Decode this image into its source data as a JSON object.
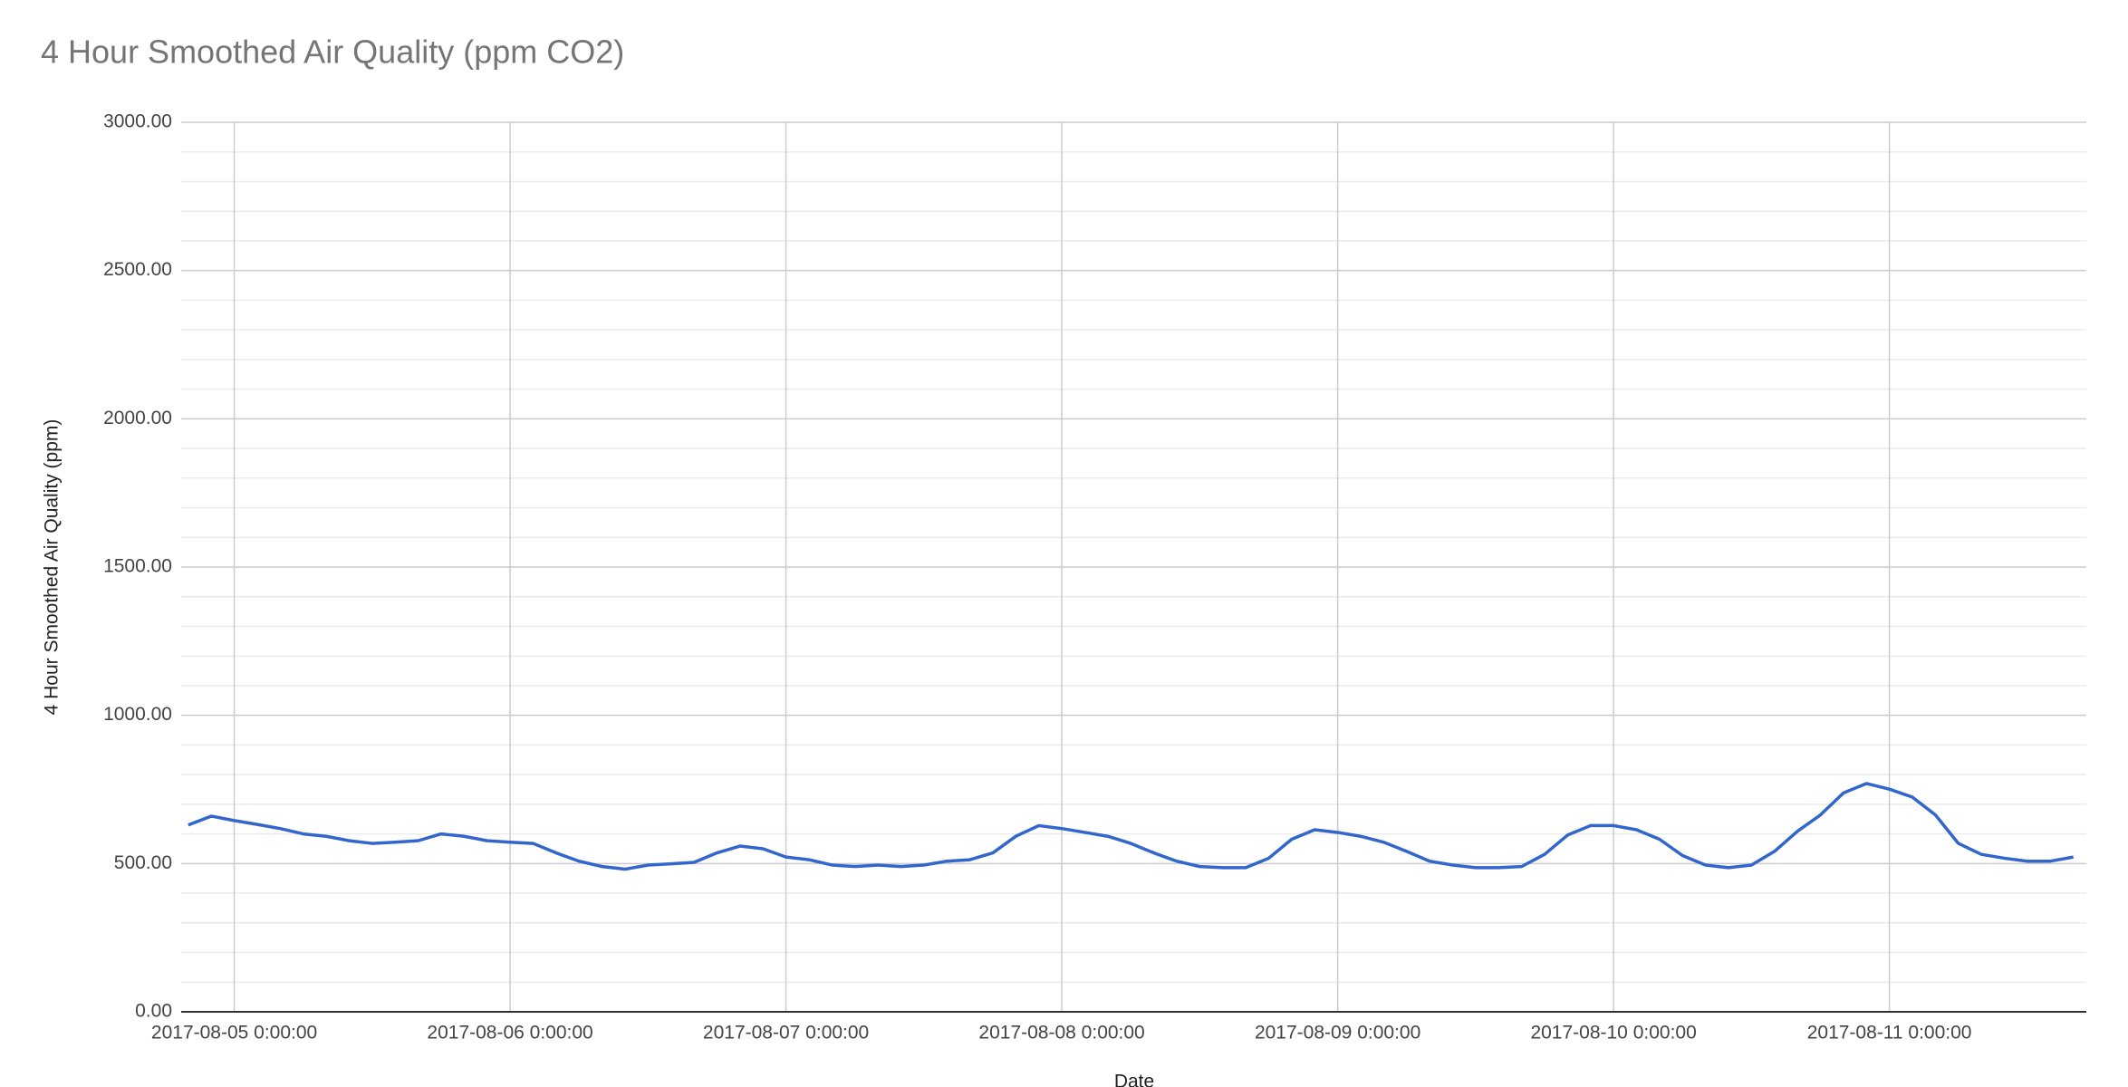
{
  "chart_data": {
    "type": "line",
    "title": "4 Hour Smoothed Air Quality (ppm CO2)",
    "x_label": "Date",
    "y_label": "4 Hour Smoothed Air Quality (ppm)",
    "xlim": [
      "2017-08-04 19:23:00",
      "2017-08-11 17:08:00"
    ],
    "xticks": [
      "2017-08-05 0:00:00",
      "2017-08-06 0:00:00",
      "2017-08-07 0:00:00",
      "2017-08-08 0:00:00",
      "2017-08-09 0:00:00",
      "2017-08-10 0:00:00",
      "2017-08-11 0:00:00"
    ],
    "ylim": [
      0,
      3000
    ],
    "yticks": [
      {
        "value": 0,
        "label": "0.00"
      },
      {
        "value": 500,
        "label": "500.00"
      },
      {
        "value": 1000,
        "label": "1000.00"
      },
      {
        "value": 1500,
        "label": "1500.00"
      },
      {
        "value": 2000,
        "label": "2000.00"
      },
      {
        "value": 2500,
        "label": "2500.00"
      },
      {
        "value": 3000,
        "label": "3000.00"
      }
    ],
    "grid": true,
    "x": [
      "2017-08-04 20:00:00",
      "2017-08-04 22:00:00",
      "2017-08-05 0:00:00",
      "2017-08-05 2:00:00",
      "2017-08-05 4:00:00",
      "2017-08-05 6:00:00",
      "2017-08-05 8:00:00",
      "2017-08-05 10:00:00",
      "2017-08-05 12:00:00",
      "2017-08-05 14:00:00",
      "2017-08-05 16:00:00",
      "2017-08-05 18:00:00",
      "2017-08-05 20:00:00",
      "2017-08-05 22:00:00",
      "2017-08-06 0:00:00",
      "2017-08-06 2:00:00",
      "2017-08-06 4:00:00",
      "2017-08-06 6:00:00",
      "2017-08-06 8:00:00",
      "2017-08-06 10:00:00",
      "2017-08-06 12:00:00",
      "2017-08-06 14:00:00",
      "2017-08-06 16:00:00",
      "2017-08-06 18:00:00",
      "2017-08-06 20:00:00",
      "2017-08-06 22:00:00",
      "2017-08-07 0:00:00",
      "2017-08-07 2:00:00",
      "2017-08-07 4:00:00",
      "2017-08-07 6:00:00",
      "2017-08-07 8:00:00",
      "2017-08-07 10:00:00",
      "2017-08-07 12:00:00",
      "2017-08-07 14:00:00",
      "2017-08-07 16:00:00",
      "2017-08-07 18:00:00",
      "2017-08-07 20:00:00",
      "2017-08-07 22:00:00",
      "2017-08-08 0:00:00",
      "2017-08-08 2:00:00",
      "2017-08-08 4:00:00",
      "2017-08-08 6:00:00",
      "2017-08-08 8:00:00",
      "2017-08-08 10:00:00",
      "2017-08-08 12:00:00",
      "2017-08-08 14:00:00",
      "2017-08-08 16:00:00",
      "2017-08-08 18:00:00",
      "2017-08-08 20:00:00",
      "2017-08-08 22:00:00",
      "2017-08-09 0:00:00",
      "2017-08-09 2:00:00",
      "2017-08-09 4:00:00",
      "2017-08-09 6:00:00",
      "2017-08-09 8:00:00",
      "2017-08-09 10:00:00",
      "2017-08-09 12:00:00",
      "2017-08-09 14:00:00",
      "2017-08-09 16:00:00",
      "2017-08-09 18:00:00",
      "2017-08-09 20:00:00",
      "2017-08-09 22:00:00",
      "2017-08-10 0:00:00",
      "2017-08-10 2:00:00",
      "2017-08-10 4:00:00",
      "2017-08-10 6:00:00",
      "2017-08-10 8:00:00",
      "2017-08-10 10:00:00",
      "2017-08-10 12:00:00",
      "2017-08-10 14:00:00",
      "2017-08-10 16:00:00",
      "2017-08-10 18:00:00",
      "2017-08-10 20:00:00",
      "2017-08-10 22:00:00",
      "2017-08-11 0:00:00",
      "2017-08-11 2:00:00",
      "2017-08-11 4:00:00",
      "2017-08-11 6:00:00",
      "2017-08-11 8:00:00",
      "2017-08-11 10:00:00",
      "2017-08-11 12:00:00",
      "2017-08-11 14:00:00",
      "2017-08-11 16:00:00"
    ],
    "series": [
      {
        "color": "#3366cc",
        "values": [
          630,
          660,
          645,
          632,
          618,
          600,
          592,
          577,
          568,
          572,
          577,
          600,
          592,
          577,
          572,
          568,
          536,
          508,
          490,
          481,
          495,
          499,
          504,
          536,
          559,
          550,
          522,
          513,
          495,
          490,
          495,
          490,
          495,
          508,
          513,
          536,
          592,
          628,
          618,
          605,
          592,
          568,
          536,
          508,
          490,
          486,
          486,
          518,
          582,
          614,
          605,
          592,
          572,
          541,
          508,
          495,
          486,
          486,
          490,
          531,
          596,
          628,
          628,
          614,
          582,
          527,
          495,
          486,
          495,
          541,
          609,
          664,
          738,
          770,
          751,
          724,
          664,
          568,
          531,
          518,
          508,
          508,
          522
        ]
      }
    ]
  }
}
